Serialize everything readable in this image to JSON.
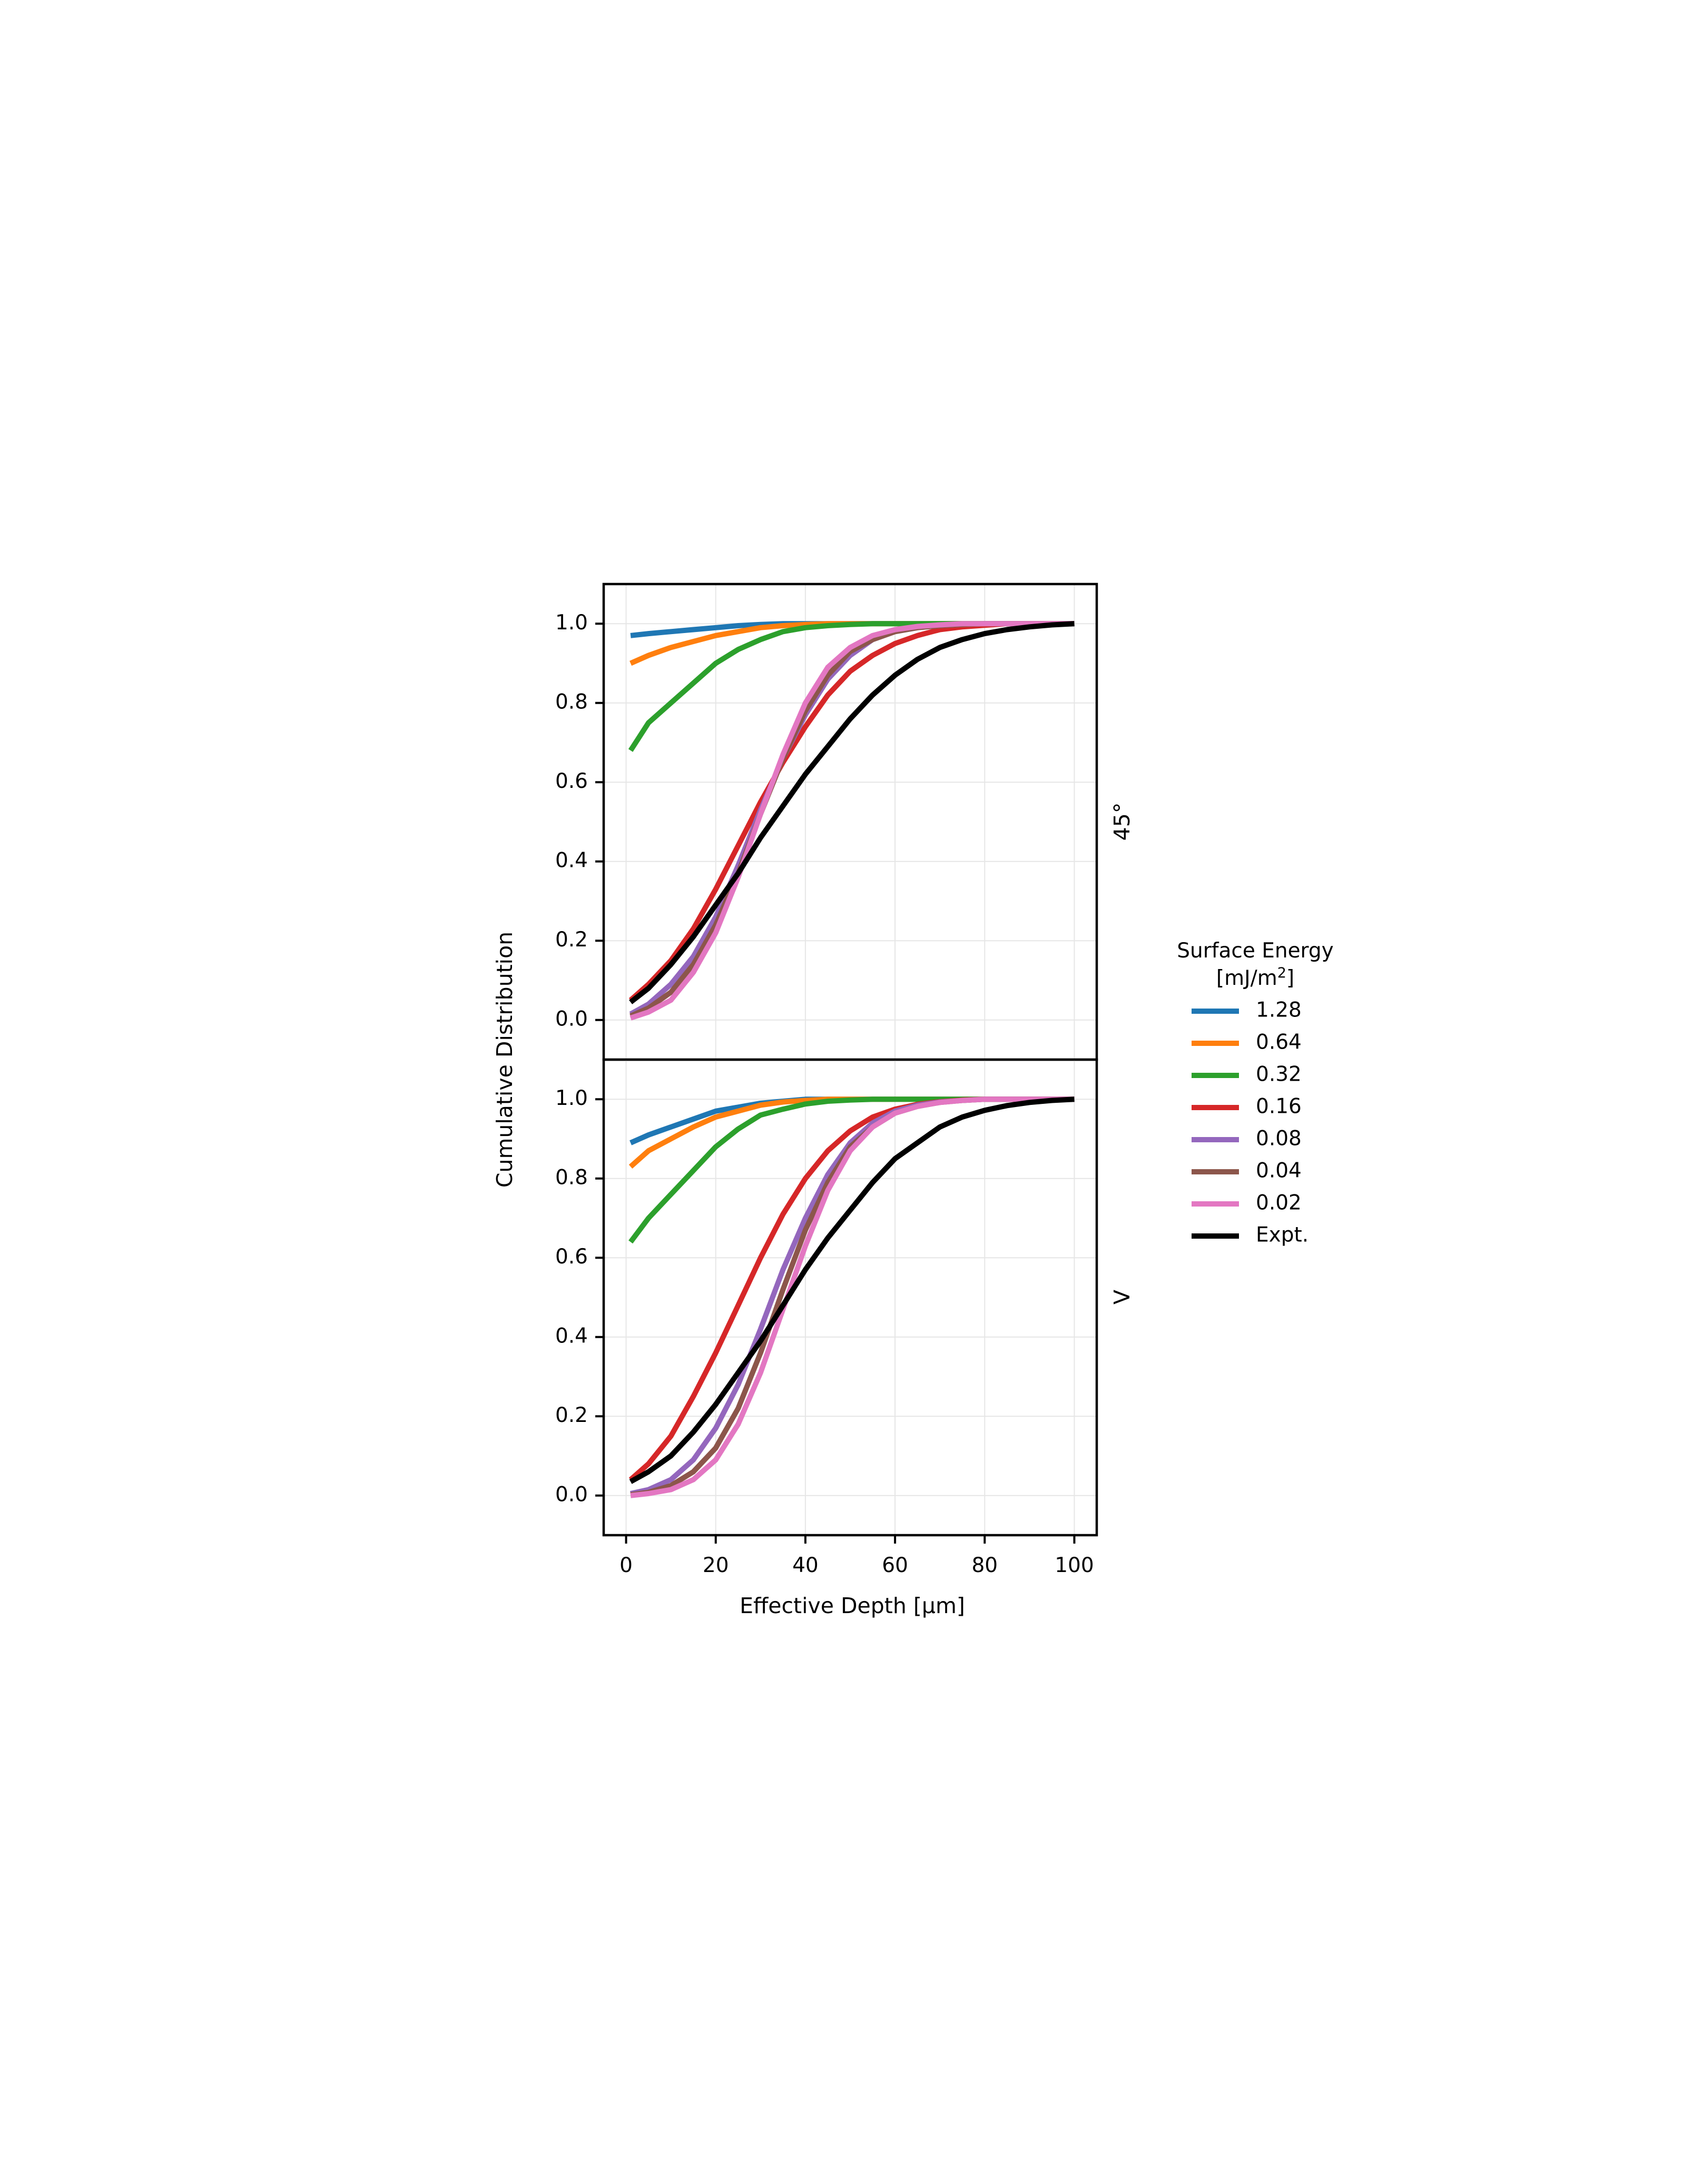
{
  "chart_data": {
    "type": "line",
    "xlabel": "Effective Depth [µm]",
    "ylabel": "Cumulative Distribution",
    "xlim": [
      -5,
      105
    ],
    "ylim": [
      -0.1,
      1.1
    ],
    "xticks": [
      "0",
      "20",
      "40",
      "60",
      "80",
      "100"
    ],
    "yticks": [
      "0.0",
      "0.2",
      "0.4",
      "0.6",
      "0.8",
      "1.0"
    ],
    "grid": true,
    "legend": {
      "title_line1": "Surface Energy",
      "title_line2_prefix": "[mJ/m",
      "title_line2_sup": "2",
      "title_line2_suffix": "]",
      "placement": "right",
      "entries": [
        "1.28",
        "0.64",
        "0.32",
        "0.16",
        "0.08",
        "0.04",
        "0.02",
        "Expt."
      ]
    },
    "colors": [
      "#1f77b4",
      "#ff7f0e",
      "#2ca02c",
      "#d62728",
      "#9467bd",
      "#8c564b",
      "#e377c2",
      "#000000"
    ],
    "panels": [
      {
        "label": "45$^\\circ$",
        "label_display": "45°",
        "x": [
          1,
          5,
          10,
          15,
          20,
          25,
          30,
          35,
          40,
          45,
          50,
          55,
          60,
          65,
          70,
          75,
          80,
          85,
          90,
          95,
          100
        ],
        "series": [
          {
            "name": "1.28",
            "values": [
              0.97,
              0.975,
              0.98,
              0.985,
              0.99,
              0.995,
              0.998,
              1.0,
              1.0,
              1.0,
              1.0,
              1.0,
              1.0,
              1.0,
              1.0,
              1.0,
              1.0,
              1.0,
              1.0,
              1.0,
              1.0
            ]
          },
          {
            "name": "0.64",
            "values": [
              0.9,
              0.92,
              0.94,
              0.955,
              0.97,
              0.98,
              0.99,
              0.995,
              0.998,
              1.0,
              1.0,
              1.0,
              1.0,
              1.0,
              1.0,
              1.0,
              1.0,
              1.0,
              1.0,
              1.0,
              1.0
            ]
          },
          {
            "name": "0.32",
            "values": [
              0.68,
              0.75,
              0.8,
              0.85,
              0.9,
              0.935,
              0.96,
              0.98,
              0.99,
              0.995,
              0.998,
              1.0,
              1.0,
              1.0,
              1.0,
              1.0,
              1.0,
              1.0,
              1.0,
              1.0,
              1.0
            ]
          },
          {
            "name": "0.16",
            "values": [
              0.05,
              0.09,
              0.15,
              0.23,
              0.33,
              0.44,
              0.55,
              0.65,
              0.74,
              0.82,
              0.88,
              0.92,
              0.95,
              0.97,
              0.985,
              0.992,
              0.996,
              1.0,
              1.0,
              1.0,
              1.0
            ]
          },
          {
            "name": "0.08",
            "values": [
              0.015,
              0.04,
              0.09,
              0.16,
              0.26,
              0.39,
              0.53,
              0.66,
              0.77,
              0.86,
              0.92,
              0.96,
              0.98,
              0.99,
              0.995,
              0.998,
              1.0,
              1.0,
              1.0,
              1.0,
              1.0
            ]
          },
          {
            "name": "0.04",
            "values": [
              0.01,
              0.03,
              0.07,
              0.14,
              0.24,
              0.37,
              0.52,
              0.66,
              0.78,
              0.87,
              0.93,
              0.96,
              0.98,
              0.99,
              0.995,
              0.998,
              1.0,
              1.0,
              1.0,
              1.0,
              1.0
            ]
          },
          {
            "name": "0.02",
            "values": [
              0.005,
              0.02,
              0.05,
              0.12,
              0.22,
              0.36,
              0.52,
              0.67,
              0.8,
              0.89,
              0.94,
              0.97,
              0.985,
              0.993,
              0.997,
              1.0,
              1.0,
              1.0,
              1.0,
              1.0,
              1.0
            ]
          },
          {
            "name": "Expt.",
            "values": [
              0.045,
              0.08,
              0.14,
              0.21,
              0.29,
              0.37,
              0.46,
              0.54,
              0.62,
              0.69,
              0.76,
              0.82,
              0.87,
              0.91,
              0.94,
              0.96,
              0.975,
              0.985,
              0.992,
              0.997,
              1.0
            ]
          }
        ]
      },
      {
        "label": "V",
        "label_display": "V",
        "x": [
          1,
          5,
          10,
          15,
          20,
          25,
          30,
          35,
          40,
          45,
          50,
          55,
          60,
          65,
          70,
          75,
          80,
          85,
          90,
          95,
          100
        ],
        "series": [
          {
            "name": "1.28",
            "values": [
              0.89,
              0.91,
              0.93,
              0.95,
              0.97,
              0.98,
              0.99,
              0.995,
              1.0,
              1.0,
              1.0,
              1.0,
              1.0,
              1.0,
              1.0,
              1.0,
              1.0,
              1.0,
              1.0,
              1.0,
              1.0
            ]
          },
          {
            "name": "0.64",
            "values": [
              0.83,
              0.87,
              0.9,
              0.93,
              0.955,
              0.97,
              0.985,
              0.993,
              0.997,
              1.0,
              1.0,
              1.0,
              1.0,
              1.0,
              1.0,
              1.0,
              1.0,
              1.0,
              1.0,
              1.0,
              1.0
            ]
          },
          {
            "name": "0.32",
            "values": [
              0.64,
              0.7,
              0.76,
              0.82,
              0.88,
              0.925,
              0.96,
              0.975,
              0.988,
              0.995,
              0.998,
              1.0,
              1.0,
              1.0,
              1.0,
              1.0,
              1.0,
              1.0,
              1.0,
              1.0,
              1.0
            ]
          },
          {
            "name": "0.16",
            "values": [
              0.04,
              0.08,
              0.15,
              0.25,
              0.36,
              0.48,
              0.6,
              0.71,
              0.8,
              0.87,
              0.92,
              0.955,
              0.975,
              0.987,
              0.994,
              0.998,
              1.0,
              1.0,
              1.0,
              1.0,
              1.0
            ]
          },
          {
            "name": "0.08",
            "values": [
              0.005,
              0.015,
              0.04,
              0.09,
              0.17,
              0.28,
              0.42,
              0.57,
              0.7,
              0.81,
              0.89,
              0.94,
              0.97,
              0.985,
              0.993,
              0.997,
              1.0,
              1.0,
              1.0,
              1.0,
              1.0
            ]
          },
          {
            "name": "0.04",
            "values": [
              0.002,
              0.008,
              0.025,
              0.06,
              0.12,
              0.22,
              0.36,
              0.52,
              0.67,
              0.79,
              0.88,
              0.93,
              0.965,
              0.982,
              0.992,
              0.997,
              1.0,
              1.0,
              1.0,
              1.0,
              1.0
            ]
          },
          {
            "name": "0.02",
            "values": [
              0.0,
              0.005,
              0.015,
              0.04,
              0.09,
              0.18,
              0.31,
              0.47,
              0.63,
              0.77,
              0.87,
              0.93,
              0.965,
              0.982,
              0.992,
              0.997,
              1.0,
              1.0,
              1.0,
              1.0,
              1.0
            ]
          },
          {
            "name": "Expt.",
            "values": [
              0.035,
              0.06,
              0.1,
              0.16,
              0.23,
              0.31,
              0.39,
              0.48,
              0.57,
              0.65,
              0.72,
              0.79,
              0.85,
              0.89,
              0.93,
              0.955,
              0.972,
              0.984,
              0.992,
              0.997,
              1.0
            ]
          }
        ]
      }
    ]
  }
}
